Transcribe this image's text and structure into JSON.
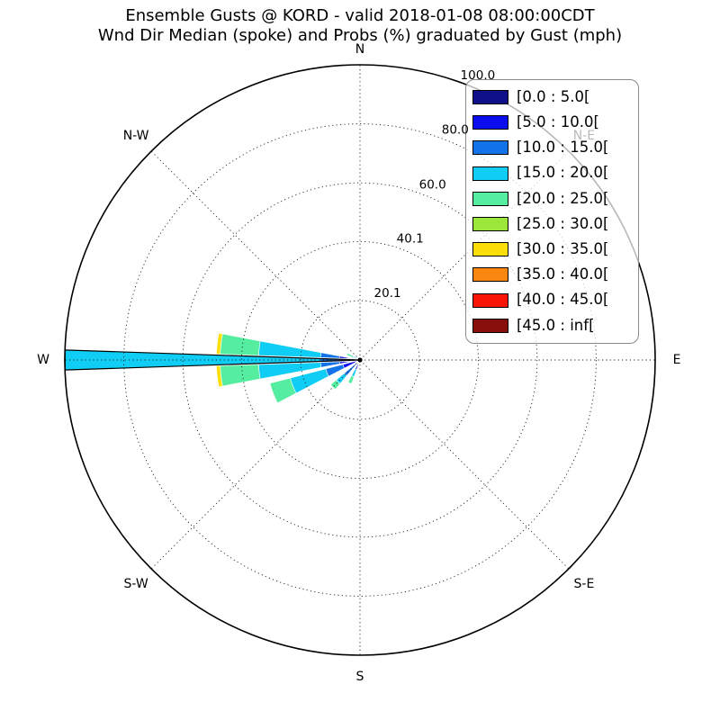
{
  "title": "Ensemble Gusts @ KORD - valid 2018-01-08 08:00:00CDT",
  "subtitle": "Wnd Dir Median (spoke) and Probs (%) graduated by Gust (mph)",
  "chart_data": {
    "type": "polar_stacked_bar_windrose",
    "radial_axis": {
      "unit": "%",
      "max": 100.0,
      "tick_labels": [
        "20.1",
        "40.1",
        "60.0",
        "80.0",
        "100.0"
      ],
      "tick_values": [
        20.1,
        40.1,
        60.0,
        80.0,
        100.0
      ],
      "tick_label_azimuth_deg": 22.5
    },
    "grid": {
      "style": "dotted",
      "radial_circles_pct": [
        20.1,
        40.1,
        60.0,
        80.0
      ],
      "spoke_lines_every_deg": 45
    },
    "compass_labels": [
      {
        "label": "N",
        "az": 0
      },
      {
        "label": "N-E",
        "az": 45
      },
      {
        "label": "E",
        "az": 90
      },
      {
        "label": "S-E",
        "az": 135
      },
      {
        "label": "S",
        "az": 180
      },
      {
        "label": "S-W",
        "az": 225
      },
      {
        "label": "W",
        "az": 270
      },
      {
        "label": "N-W",
        "az": 315
      }
    ],
    "gust_bins": [
      {
        "label": "[0.0 : 5.0[",
        "color": "#101089"
      },
      {
        "label": "[5.0 : 10.0[",
        "color": "#0c0cf0"
      },
      {
        "label": "[10.0 : 15.0[",
        "color": "#1272e8"
      },
      {
        "label": "[15.0 : 20.0[",
        "color": "#0fcdf5"
      },
      {
        "label": "[20.0 : 25.0[",
        "color": "#55eda0"
      },
      {
        "label": "[25.0 : 30.0[",
        "color": "#9ce63c"
      },
      {
        "label": "[30.0 : 35.0[",
        "color": "#fbdf0a"
      },
      {
        "label": "[35.0 : 40.0[",
        "color": "#f8860f"
      },
      {
        "label": "[40.0 : 45.0[",
        "color": "#f81505"
      },
      {
        "label": "[45.0 : inf[",
        "color": "#870f0c"
      }
    ],
    "spokes": [
      {
        "name": "wedge-w",
        "az": 270,
        "width": 21.5,
        "segments": [
          {
            "bin": 0,
            "r0": 0,
            "r1": 1.2
          },
          {
            "bin": 1,
            "r0": 1.2,
            "r1": 7
          },
          {
            "bin": 2,
            "r0": 7,
            "r1": 13.4
          },
          {
            "bin": 3,
            "r0": 13.4,
            "r1": 34.4
          },
          {
            "bin": 4,
            "r0": 34.4,
            "r1": 47.4
          },
          {
            "bin": 6,
            "r0": 47.4,
            "r1": 48.7
          }
        ]
      },
      {
        "name": "wedge-wsw",
        "az": 249,
        "width": 13,
        "segments": [
          {
            "bin": 1,
            "r0": 1,
            "r1": 6
          },
          {
            "bin": 2,
            "r0": 6,
            "r1": 12
          },
          {
            "bin": 3,
            "r0": 12,
            "r1": 24.4
          },
          {
            "bin": 4,
            "r0": 24.4,
            "r1": 31.5
          }
        ]
      },
      {
        "name": "wedge-sw",
        "az": 225,
        "width": 10,
        "segments": [
          {
            "bin": 2,
            "r0": 1.5,
            "r1": 7
          },
          {
            "bin": 3,
            "r0": 7,
            "r1": 10.5
          },
          {
            "bin": 4,
            "r0": 10.5,
            "r1": 13
          }
        ]
      },
      {
        "name": "wedge-ssw",
        "az": 204,
        "width": 9,
        "segments": [
          {
            "bin": 1,
            "r0": 0.8,
            "r1": 3.5
          },
          {
            "bin": 3,
            "r0": 3.5,
            "r1": 6
          },
          {
            "bin": 4,
            "r0": 6,
            "r1": 8.5
          }
        ]
      },
      {
        "name": "wedge-wnw",
        "az": 295,
        "width": 9,
        "segments": [
          {
            "bin": 3,
            "r0": 1,
            "r1": 2.6
          },
          {
            "bin": 4,
            "r0": 2.6,
            "r1": 4.8
          }
        ]
      }
    ],
    "median_spoke": {
      "az": 270,
      "width": 3.9,
      "outline_color": "#000000",
      "segments": [
        {
          "bin": 0,
          "r0": 0,
          "r1": 2
        },
        {
          "bin": 1,
          "r0": 2,
          "r1": 7
        },
        {
          "bin": 2,
          "r0": 7,
          "r1": 13.4
        },
        {
          "bin": 3,
          "r0": 13.4,
          "r1": 100
        }
      ]
    },
    "legend_position": "upper right"
  },
  "style_colors": {
    "grid": "#222222",
    "outer_circle": "#000000",
    "legend_border": "#8a8a8a"
  }
}
